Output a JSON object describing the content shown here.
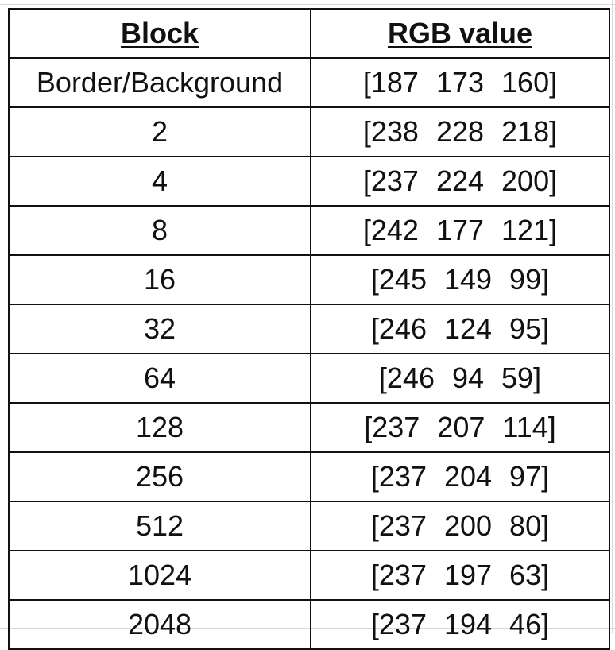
{
  "table": {
    "headers": {
      "block": "Block",
      "rgb": "RGB value"
    },
    "rows": [
      {
        "block": "Border/Background",
        "rgb": "[187  173  160]"
      },
      {
        "block": "2",
        "rgb": "[238  228  218]"
      },
      {
        "block": "4",
        "rgb": "[237  224  200]"
      },
      {
        "block": "8",
        "rgb": "[242  177  121]"
      },
      {
        "block": "16",
        "rgb": "[245  149  99]"
      },
      {
        "block": "32",
        "rgb": "[246  124  95]"
      },
      {
        "block": "64",
        "rgb": "[246  94  59]"
      },
      {
        "block": "128",
        "rgb": "[237  207  114]"
      },
      {
        "block": "256",
        "rgb": "[237  204  97]"
      },
      {
        "block": "512",
        "rgb": "[237  200  80]"
      },
      {
        "block": "1024",
        "rgb": "[237 197  63]"
      },
      {
        "block": "2048",
        "rgb": "[237  194  46]"
      }
    ]
  }
}
